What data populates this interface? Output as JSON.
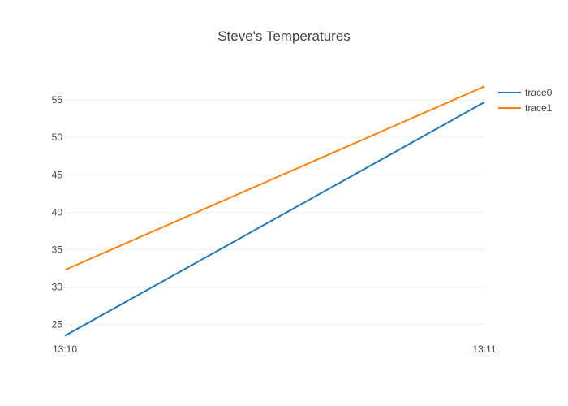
{
  "chart_data": {
    "type": "line",
    "title": "Steve's Temperatures",
    "x": [
      "13:10",
      "13:11"
    ],
    "x_tick_labels": [
      "13:10",
      "13:11"
    ],
    "y_tick_labels": [
      "25",
      "30",
      "35",
      "40",
      "45",
      "50",
      "55"
    ],
    "y_ticks": [
      25,
      30,
      35,
      40,
      45,
      50,
      55
    ],
    "ylim": [
      22.8,
      57.5
    ],
    "grid": true,
    "legend_position": "top-right",
    "series": [
      {
        "name": "trace0",
        "values": [
          23.5,
          54.7
        ],
        "color": "#1f77b4"
      },
      {
        "name": "trace1",
        "values": [
          32.3,
          56.8
        ],
        "color": "#ff7f0e"
      }
    ]
  }
}
